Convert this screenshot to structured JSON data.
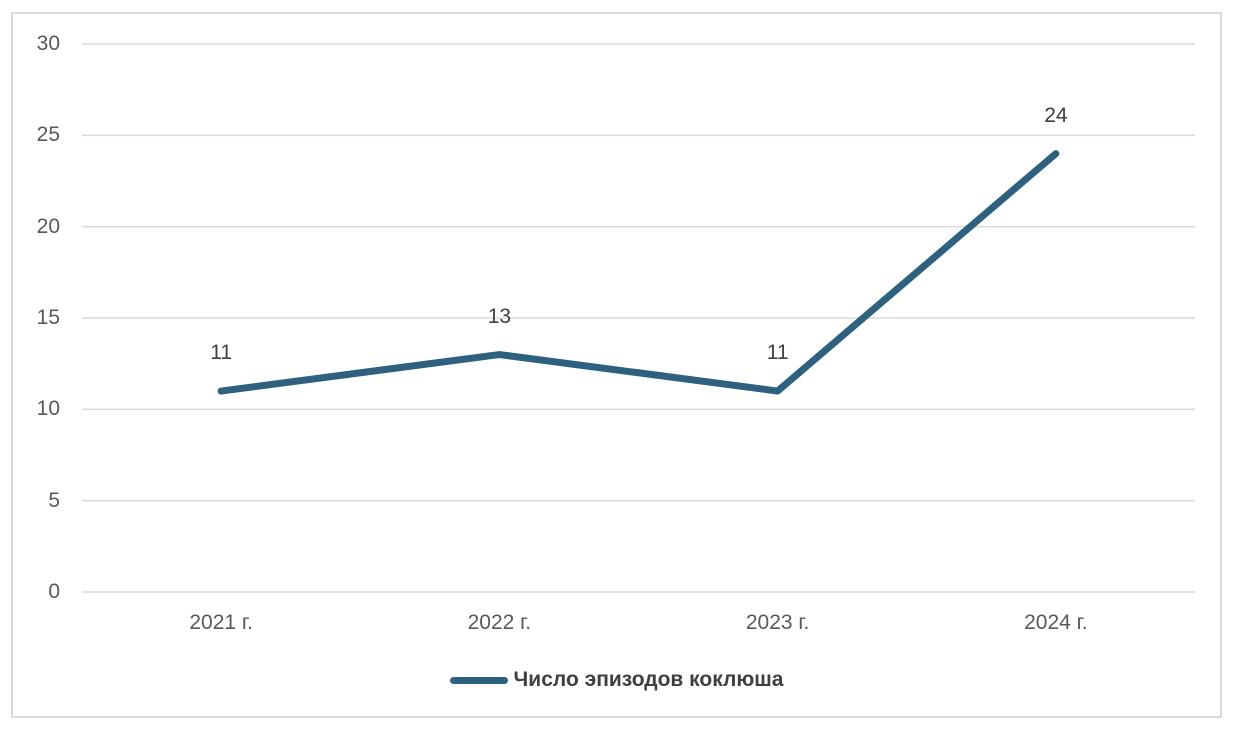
{
  "chart_data": {
    "type": "line",
    "title": "",
    "categories": [
      "2021 г.",
      "2022 г.",
      "2023 г.",
      "2024 г."
    ],
    "series": [
      {
        "name": "Число эпизодов коклюша",
        "values": [
          11,
          13,
          11,
          24
        ]
      }
    ],
    "data_labels": [
      "11",
      "13",
      "11",
      "24"
    ],
    "yticks": [
      0,
      5,
      10,
      15,
      20,
      25,
      30
    ],
    "ylim": [
      0,
      30
    ],
    "xlabel": "",
    "ylabel": "",
    "grid": "horizontal",
    "legend_position": "bottom-center",
    "colors": {
      "line": "#2D617F",
      "gridline": "#D9D9D9",
      "frame_border": "#D9D9D9",
      "tick_label": "#595959",
      "data_label": "#3F3F3F",
      "legend_text": "#3F3F3F",
      "background": "#FFFFFF"
    }
  }
}
